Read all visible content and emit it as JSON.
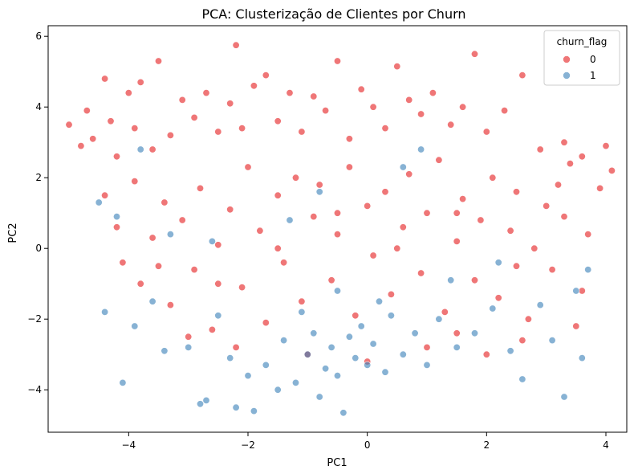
{
  "chart_data": {
    "type": "scatter",
    "title": "PCA: Clusterização de Clientes por Churn",
    "xlabel": "PC1",
    "ylabel": "PC2",
    "xlim": [
      -5.35,
      4.35
    ],
    "ylim": [
      -5.2,
      6.3
    ],
    "xticks": [
      -4,
      -2,
      0,
      2,
      4
    ],
    "yticks": [
      -4,
      -2,
      0,
      2,
      4,
      6
    ],
    "xtick_labels": [
      "−4",
      "−2",
      "0",
      "2",
      "4"
    ],
    "ytick_labels": [
      "−4",
      "−2",
      "0",
      "2",
      "4",
      "6"
    ],
    "grid": false,
    "legend": {
      "title": "churn_flag",
      "position": "top-right",
      "entries": [
        "0",
        "1"
      ]
    },
    "series": [
      {
        "name": "0",
        "color": "#e41a1c",
        "points": [
          [
            -5.0,
            3.5
          ],
          [
            -4.8,
            2.9
          ],
          [
            -4.7,
            3.9
          ],
          [
            -4.6,
            3.1
          ],
          [
            -4.4,
            4.8
          ],
          [
            -4.3,
            3.6
          ],
          [
            -4.2,
            2.6
          ],
          [
            -4.0,
            4.4
          ],
          [
            -3.9,
            3.4
          ],
          [
            -3.8,
            4.7
          ],
          [
            -3.6,
            2.8
          ],
          [
            -3.5,
            5.3
          ],
          [
            -3.3,
            3.2
          ],
          [
            -3.1,
            4.2
          ],
          [
            -2.9,
            3.7
          ],
          [
            -2.7,
            4.4
          ],
          [
            -2.5,
            3.3
          ],
          [
            -2.3,
            4.1
          ],
          [
            -2.1,
            3.4
          ],
          [
            -2.2,
            5.75
          ],
          [
            -1.9,
            4.6
          ],
          [
            -1.7,
            4.9
          ],
          [
            -1.5,
            3.6
          ],
          [
            -1.3,
            4.4
          ],
          [
            -1.1,
            3.3
          ],
          [
            -0.9,
            4.3
          ],
          [
            -0.7,
            3.9
          ],
          [
            -0.5,
            5.3
          ],
          [
            -0.3,
            3.1
          ],
          [
            -0.1,
            4.5
          ],
          [
            0.1,
            4.0
          ],
          [
            0.3,
            3.4
          ],
          [
            0.5,
            5.15
          ],
          [
            0.7,
            4.2
          ],
          [
            0.9,
            3.8
          ],
          [
            1.1,
            4.4
          ],
          [
            1.4,
            3.5
          ],
          [
            1.8,
            5.5
          ],
          [
            1.6,
            4.0
          ],
          [
            2.0,
            3.3
          ],
          [
            2.3,
            3.9
          ],
          [
            2.6,
            4.9
          ],
          [
            2.9,
            2.8
          ],
          [
            3.3,
            3.0
          ],
          [
            3.6,
            2.6
          ],
          [
            4.0,
            2.9
          ],
          [
            4.1,
            2.2
          ],
          [
            -4.4,
            1.5
          ],
          [
            -4.2,
            0.6
          ],
          [
            -4.1,
            -0.4
          ],
          [
            -3.9,
            1.9
          ],
          [
            -3.8,
            -1.0
          ],
          [
            -3.6,
            0.3
          ],
          [
            -3.4,
            1.3
          ],
          [
            -3.3,
            -1.6
          ],
          [
            -3.1,
            0.8
          ],
          [
            -2.9,
            -0.6
          ],
          [
            -2.8,
            1.7
          ],
          [
            -2.6,
            -2.3
          ],
          [
            -2.5,
            0.1
          ],
          [
            -2.3,
            1.1
          ],
          [
            -2.1,
            -1.1
          ],
          [
            -2.0,
            2.3
          ],
          [
            -1.8,
            0.5
          ],
          [
            -1.7,
            -2.1
          ],
          [
            -1.5,
            1.5
          ],
          [
            -1.4,
            -0.4
          ],
          [
            -1.2,
            2.0
          ],
          [
            -1.1,
            -1.5
          ],
          [
            -0.9,
            0.9
          ],
          [
            -0.8,
            1.8
          ],
          [
            -0.6,
            -0.9
          ],
          [
            -0.5,
            0.4
          ],
          [
            -0.3,
            2.3
          ],
          [
            -0.2,
            -1.9
          ],
          [
            0.0,
            1.2
          ],
          [
            0.1,
            -0.2
          ],
          [
            0.3,
            1.6
          ],
          [
            0.4,
            -1.3
          ],
          [
            0.6,
            0.6
          ],
          [
            0.7,
            2.1
          ],
          [
            0.9,
            -0.7
          ],
          [
            1.0,
            1.0
          ],
          [
            1.2,
            2.5
          ],
          [
            1.3,
            -1.8
          ],
          [
            1.5,
            0.2
          ],
          [
            1.6,
            1.4
          ],
          [
            1.8,
            -0.9
          ],
          [
            1.9,
            0.8
          ],
          [
            2.1,
            2.0
          ],
          [
            2.2,
            -1.4
          ],
          [
            2.4,
            0.5
          ],
          [
            2.5,
            1.6
          ],
          [
            2.7,
            -2.0
          ],
          [
            2.8,
            0.0
          ],
          [
            3.0,
            1.2
          ],
          [
            3.1,
            -0.6
          ],
          [
            3.3,
            0.9
          ],
          [
            3.4,
            2.4
          ],
          [
            3.6,
            -1.2
          ],
          [
            3.7,
            0.4
          ],
          [
            3.9,
            1.7
          ],
          [
            2.0,
            -3.0
          ],
          [
            1.0,
            -2.8
          ],
          [
            -1.0,
            -3.0
          ],
          [
            -3.0,
            -2.5
          ],
          [
            0.0,
            -3.2
          ],
          [
            -2.2,
            -2.8
          ],
          [
            2.6,
            -2.6
          ],
          [
            3.5,
            -2.2
          ],
          [
            1.5,
            -2.4
          ],
          [
            -0.5,
            1.0
          ],
          [
            0.5,
            0.0
          ],
          [
            1.5,
            1.0
          ],
          [
            2.5,
            -0.5
          ],
          [
            -1.5,
            0.0
          ],
          [
            -2.5,
            -1.0
          ],
          [
            -3.5,
            -0.5
          ],
          [
            3.2,
            1.8
          ]
        ]
      },
      {
        "name": "1",
        "color": "#377eb8",
        "points": [
          [
            -4.5,
            1.3
          ],
          [
            -4.4,
            -1.8
          ],
          [
            -4.2,
            0.9
          ],
          [
            -4.1,
            -3.8
          ],
          [
            -3.9,
            -2.2
          ],
          [
            -3.8,
            2.8
          ],
          [
            -3.6,
            -1.5
          ],
          [
            -3.4,
            -2.9
          ],
          [
            -3.3,
            0.4
          ],
          [
            -3.0,
            -2.8
          ],
          [
            -2.8,
            -4.4
          ],
          [
            -2.7,
            -4.3
          ],
          [
            -2.5,
            -1.9
          ],
          [
            -2.3,
            -3.1
          ],
          [
            -2.2,
            -4.5
          ],
          [
            -2.0,
            -3.6
          ],
          [
            -1.9,
            -4.6
          ],
          [
            -1.7,
            -3.3
          ],
          [
            -1.5,
            -4.0
          ],
          [
            -1.4,
            -2.6
          ],
          [
            -1.2,
            -3.8
          ],
          [
            -1.0,
            -3.0
          ],
          [
            -0.9,
            -2.4
          ],
          [
            -0.8,
            -4.2
          ],
          [
            -0.7,
            -3.4
          ],
          [
            -0.6,
            -2.8
          ],
          [
            -0.5,
            -3.6
          ],
          [
            -0.4,
            -4.65
          ],
          [
            -0.3,
            -2.5
          ],
          [
            -0.2,
            -3.1
          ],
          [
            -0.1,
            -2.2
          ],
          [
            0.0,
            -3.3
          ],
          [
            0.1,
            -2.7
          ],
          [
            0.3,
            -3.5
          ],
          [
            0.4,
            -1.9
          ],
          [
            0.6,
            -3.0
          ],
          [
            0.8,
            -2.4
          ],
          [
            1.0,
            -3.3
          ],
          [
            1.2,
            -2.0
          ],
          [
            1.5,
            -2.8
          ],
          [
            1.8,
            -2.4
          ],
          [
            2.1,
            -1.7
          ],
          [
            2.4,
            -2.9
          ],
          [
            2.6,
            -3.7
          ],
          [
            2.9,
            -1.6
          ],
          [
            3.1,
            -2.6
          ],
          [
            3.3,
            -4.2
          ],
          [
            3.5,
            -1.2
          ],
          [
            3.6,
            -3.1
          ],
          [
            3.7,
            -0.6
          ],
          [
            -1.3,
            0.8
          ],
          [
            -0.8,
            1.6
          ],
          [
            0.6,
            2.3
          ],
          [
            0.9,
            2.8
          ],
          [
            -2.6,
            0.2
          ],
          [
            -1.1,
            -1.8
          ],
          [
            -0.5,
            -1.2
          ],
          [
            0.2,
            -1.5
          ],
          [
            1.4,
            -0.9
          ],
          [
            2.2,
            -0.4
          ]
        ]
      }
    ]
  }
}
